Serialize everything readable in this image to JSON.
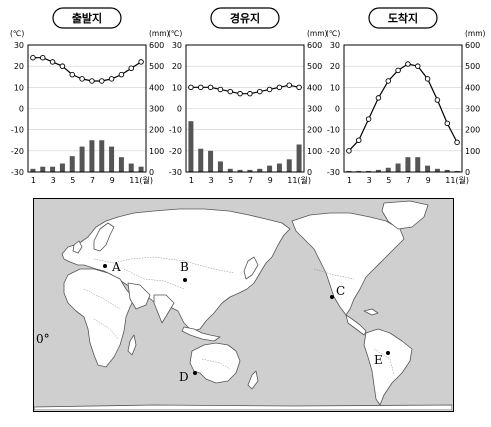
{
  "chart_data": [
    {
      "type": "bar+line",
      "title": "출발지",
      "x": [
        "1",
        "2",
        "3",
        "4",
        "5",
        "6",
        "7",
        "8",
        "9",
        "10",
        "11",
        "12"
      ],
      "x_tick_labels": [
        "1",
        "3",
        "5",
        "7",
        "9",
        "11(월)"
      ],
      "temperature_c": [
        24,
        24,
        22,
        20,
        16,
        14,
        13,
        13,
        14,
        16,
        19,
        22
      ],
      "precipitation_mm": [
        15,
        25,
        25,
        40,
        75,
        120,
        150,
        150,
        120,
        70,
        40,
        25
      ],
      "left_axis": {
        "unit": "(℃)",
        "range": [
          -30,
          30
        ],
        "ticks": [
          "30",
          "20",
          "10",
          "0",
          "-10",
          "-20",
          "-30"
        ]
      },
      "right_axis": {
        "unit": "(mm)",
        "range": [
          0,
          600
        ],
        "ticks": [
          "600",
          "500",
          "400",
          "300",
          "200",
          "100",
          "0"
        ]
      }
    },
    {
      "type": "bar+line",
      "title": "경유지",
      "x": [
        "1",
        "2",
        "3",
        "4",
        "5",
        "6",
        "7",
        "8",
        "9",
        "10",
        "11",
        "12"
      ],
      "x_tick_labels": [
        "1",
        "3",
        "5",
        "7",
        "9",
        "11(월)"
      ],
      "temperature_c": [
        10,
        10,
        10,
        9,
        8,
        7,
        7,
        8,
        9,
        10,
        11,
        10
      ],
      "precipitation_mm": [
        240,
        110,
        100,
        50,
        15,
        10,
        10,
        15,
        30,
        40,
        60,
        130
      ],
      "left_axis": {
        "unit": "(℃)",
        "range": [
          -30,
          30
        ],
        "ticks": [
          "30",
          "20",
          "10",
          "0",
          "-10",
          "-20",
          "-30"
        ]
      },
      "right_axis": {
        "unit": "(mm)",
        "range": [
          0,
          600
        ],
        "ticks": [
          "600",
          "500",
          "400",
          "300",
          "200",
          "100",
          "0"
        ]
      }
    },
    {
      "type": "bar+line",
      "title": "도착지",
      "x": [
        "1",
        "2",
        "3",
        "4",
        "5",
        "6",
        "7",
        "8",
        "9",
        "10",
        "11",
        "12"
      ],
      "x_tick_labels": [
        "1",
        "3",
        "5",
        "7",
        "9",
        "11(월)"
      ],
      "temperature_c": [
        -20,
        -15,
        -5,
        5,
        13,
        18,
        21,
        20,
        14,
        4,
        -7,
        -16
      ],
      "precipitation_mm": [
        5,
        5,
        5,
        10,
        20,
        40,
        70,
        70,
        30,
        15,
        10,
        5
      ],
      "left_axis": {
        "unit": "(℃)",
        "range": [
          -30,
          30
        ],
        "ticks": [
          "30",
          "20",
          "10",
          "0",
          "-10",
          "-20",
          "-30"
        ]
      },
      "right_axis": {
        "unit": "(mm)",
        "range": [
          0,
          600
        ],
        "ticks": [
          "600",
          "500",
          "400",
          "300",
          "200",
          "100",
          "0"
        ]
      }
    }
  ],
  "map": {
    "equator_label": "0°",
    "points": [
      {
        "label": "A"
      },
      {
        "label": "B"
      },
      {
        "label": "C"
      },
      {
        "label": "D"
      },
      {
        "label": "E"
      }
    ]
  }
}
